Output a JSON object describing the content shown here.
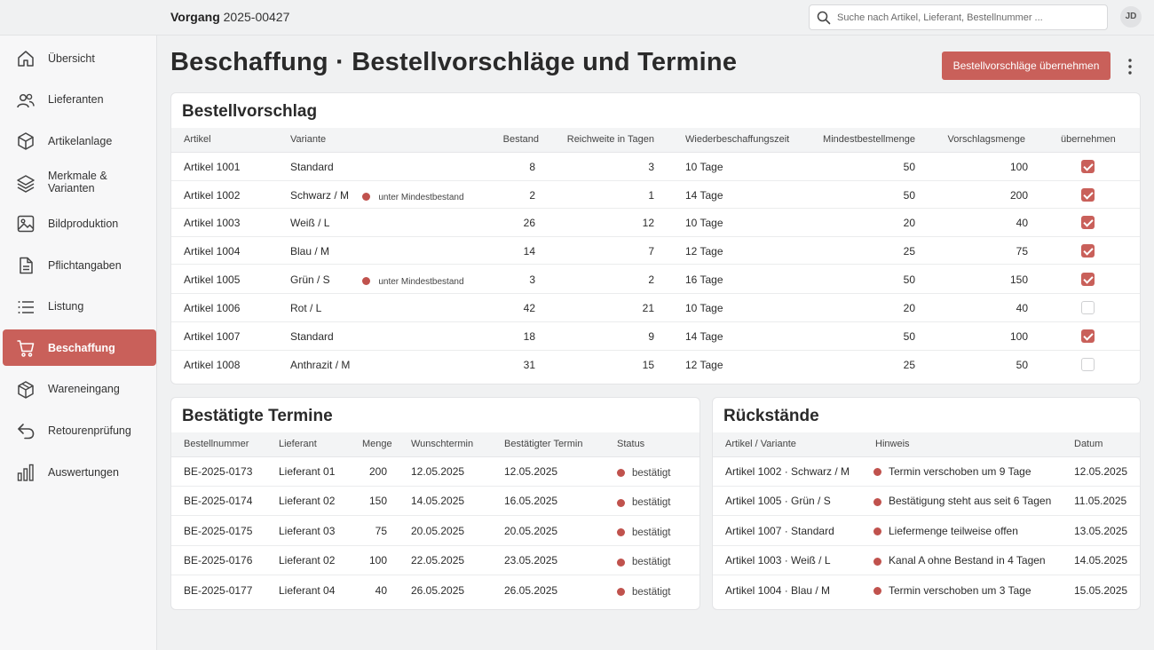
{
  "header": {
    "crumb_label": "Vorgang",
    "crumb_value": "2025-00427",
    "search_placeholder": "Suche nach Artikel, Lieferant, Bestellnummer ...",
    "avatar_initials": "JD"
  },
  "sidebar": {
    "items": [
      {
        "label": "Übersicht",
        "icon": "home-icon"
      },
      {
        "label": "Lieferanten",
        "icon": "users-icon"
      },
      {
        "label": "Artikelanlage",
        "icon": "box-icon"
      },
      {
        "label": "Merkmale & Varianten",
        "icon": "layers-icon"
      },
      {
        "label": "Bildproduktion",
        "icon": "image-icon"
      },
      {
        "label": "Pflichtangaben",
        "icon": "document-icon"
      },
      {
        "label": "Listung",
        "icon": "list-icon"
      },
      {
        "label": "Beschaffung",
        "icon": "cart-icon",
        "active": true
      },
      {
        "label": "Wareneingang",
        "icon": "package-icon"
      },
      {
        "label": "Retourenprüfung",
        "icon": "return-icon"
      },
      {
        "label": "Auswertungen",
        "icon": "bar-chart-icon"
      }
    ]
  },
  "page": {
    "title": "Beschaffung · Bestellvorschläge und Termine",
    "primary_button": "Bestellvorschläge übernehmen"
  },
  "proposals": {
    "title": "Bestellvorschlag",
    "columns": [
      "Artikel",
      "Variante",
      "Bestand",
      "Reichweite in Tagen",
      "Wiederbeschaffungszeit",
      "Mindestbestellmenge",
      "Vorschlagsmenge",
      "übernehmen"
    ],
    "rows": [
      {
        "artikel": "Artikel 1001",
        "variante": "Standard",
        "hinweis": "",
        "bestand": "8",
        "reichweite": "3",
        "wbz": "10 Tage",
        "mindest": "50",
        "vorschlag": "100",
        "checked": true
      },
      {
        "artikel": "Artikel 1002",
        "variante": "Schwarz / M",
        "hinweis": "unter Mindestbestand",
        "bestand": "2",
        "reichweite": "1",
        "wbz": "14 Tage",
        "mindest": "50",
        "vorschlag": "200",
        "checked": true
      },
      {
        "artikel": "Artikel 1003",
        "variante": "Weiß / L",
        "hinweis": "",
        "bestand": "26",
        "reichweite": "12",
        "wbz": "10 Tage",
        "mindest": "20",
        "vorschlag": "40",
        "checked": true
      },
      {
        "artikel": "Artikel 1004",
        "variante": "Blau / M",
        "hinweis": "",
        "bestand": "14",
        "reichweite": "7",
        "wbz": "12 Tage",
        "mindest": "25",
        "vorschlag": "75",
        "checked": true
      },
      {
        "artikel": "Artikel 1005",
        "variante": "Grün / S",
        "hinweis": "unter Mindestbestand",
        "bestand": "3",
        "reichweite": "2",
        "wbz": "16 Tage",
        "mindest": "50",
        "vorschlag": "150",
        "checked": true
      },
      {
        "artikel": "Artikel 1006",
        "variante": "Rot / L",
        "hinweis": "",
        "bestand": "42",
        "reichweite": "21",
        "wbz": "10 Tage",
        "mindest": "20",
        "vorschlag": "40",
        "checked": false
      },
      {
        "artikel": "Artikel 1007",
        "variante": "Standard",
        "hinweis": "",
        "bestand": "18",
        "reichweite": "9",
        "wbz": "14 Tage",
        "mindest": "50",
        "vorschlag": "100",
        "checked": true
      },
      {
        "artikel": "Artikel 1008",
        "variante": "Anthrazit / M",
        "hinweis": "",
        "bestand": "31",
        "reichweite": "15",
        "wbz": "12 Tage",
        "mindest": "25",
        "vorschlag": "50",
        "checked": false
      }
    ]
  },
  "confirmed": {
    "title": "Bestätigte Termine",
    "columns": [
      "Bestellnummer",
      "Lieferant",
      "Menge",
      "Wunschtermin",
      "Bestätigter Termin",
      "Status"
    ],
    "rows": [
      {
        "nr": "BE-2025-0173",
        "lieferant": "Lieferant 01",
        "menge": "200",
        "wunsch": "12.05.2025",
        "bestaetigt": "12.05.2025",
        "status": "bestätigt"
      },
      {
        "nr": "BE-2025-0174",
        "lieferant": "Lieferant 02",
        "menge": "150",
        "wunsch": "14.05.2025",
        "bestaetigt": "16.05.2025",
        "status": "bestätigt"
      },
      {
        "nr": "BE-2025-0175",
        "lieferant": "Lieferant 03",
        "menge": "75",
        "wunsch": "20.05.2025",
        "bestaetigt": "20.05.2025",
        "status": "bestätigt"
      },
      {
        "nr": "BE-2025-0176",
        "lieferant": "Lieferant 02",
        "menge": "100",
        "wunsch": "22.05.2025",
        "bestaetigt": "23.05.2025",
        "status": "bestätigt"
      },
      {
        "nr": "BE-2025-0177",
        "lieferant": "Lieferant 04",
        "menge": "40",
        "wunsch": "26.05.2025",
        "bestaetigt": "26.05.2025",
        "status": "bestätigt"
      }
    ]
  },
  "backlog": {
    "title": "Rückstände",
    "columns": [
      "Artikel / Variante",
      "Hinweis",
      "Datum"
    ],
    "rows": [
      {
        "artikel": "Artikel 1002 · Schwarz / M",
        "hinweis": "Termin verschoben um 9 Tage",
        "datum": "12.05.2025"
      },
      {
        "artikel": "Artikel 1005 · Grün / S",
        "hinweis": "Bestätigung steht aus seit 6 Tagen",
        "datum": "11.05.2025"
      },
      {
        "artikel": "Artikel 1007 · Standard",
        "hinweis": "Liefermenge teilweise offen",
        "datum": "13.05.2025"
      },
      {
        "artikel": "Artikel 1003 · Weiß / L",
        "hinweis": "Kanal A ohne Bestand in 4 Tagen",
        "datum": "14.05.2025"
      },
      {
        "artikel": "Artikel 1004 · Blau / M",
        "hinweis": "Termin verschoben um 3 Tage",
        "datum": "15.05.2025"
      }
    ]
  },
  "colors": {
    "accent": "#c9605a",
    "status_dot": "#c0524d"
  }
}
